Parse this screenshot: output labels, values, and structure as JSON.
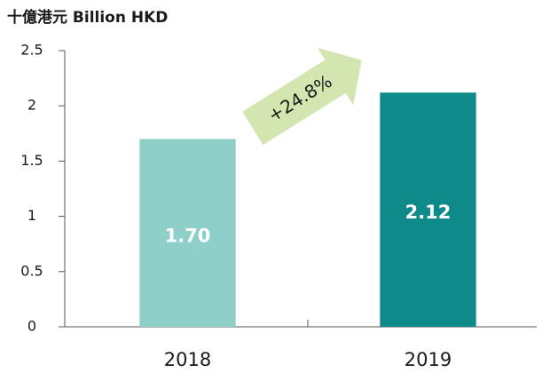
{
  "chart_data": {
    "type": "bar",
    "title": "十億港元 Billion HKD",
    "categories": [
      "2018",
      "2019"
    ],
    "values": [
      1.7,
      2.12
    ],
    "value_labels": [
      "1.70",
      "2.12"
    ],
    "colors": [
      "#8ecfc9",
      "#0e8a8a"
    ],
    "ylim": [
      0,
      2.5
    ],
    "yticks": [
      0,
      0.5,
      1,
      1.5,
      2,
      2.5
    ],
    "grid": false,
    "annotation": "+24.8%"
  }
}
